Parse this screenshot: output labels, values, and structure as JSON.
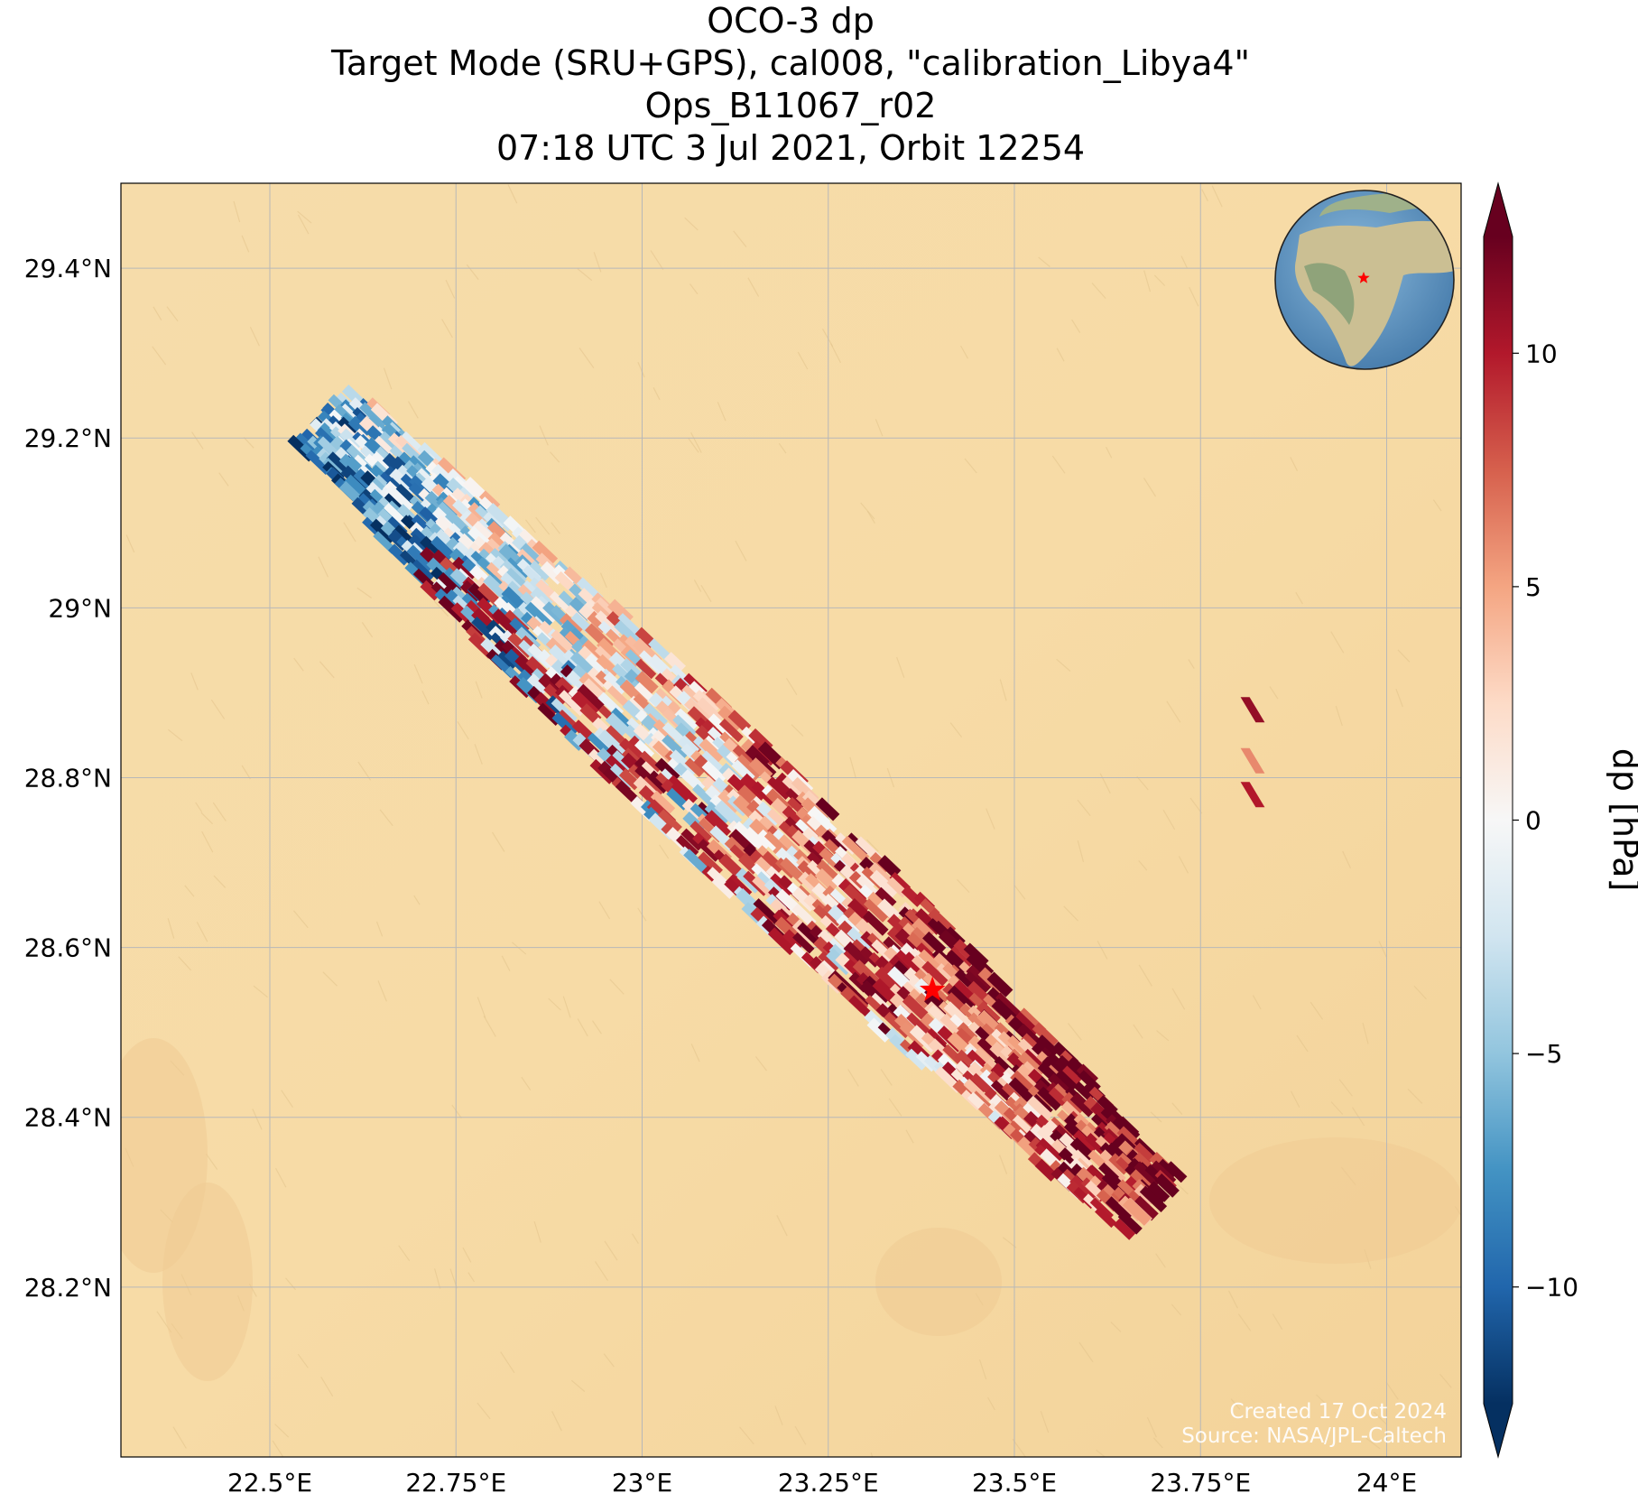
{
  "title": {
    "line1": "OCO-3 dp",
    "line2": "Target Mode (SRU+GPS), cal008, \"calibration_Libya4\"",
    "line3": "Ops_B11067_r02",
    "line4": "07:18 UTC 3 Jul 2021, Orbit 12254"
  },
  "map": {
    "lon_range": [
      22.3,
      24.1
    ],
    "lat_range": [
      28.0,
      29.5
    ],
    "lon_ticks": [
      22.5,
      22.75,
      23.0,
      23.25,
      23.5,
      23.75,
      24.0
    ],
    "lon_tick_labels": [
      "22.5°E",
      "22.75°E",
      "23°E",
      "23.25°E",
      "23.5°E",
      "23.75°E",
      "24°E"
    ],
    "lat_ticks": [
      28.2,
      28.4,
      28.6,
      28.8,
      29.0,
      29.2,
      29.4
    ],
    "lat_tick_labels": [
      "28.2°N",
      "28.4°N",
      "28.6°N",
      "28.8°N",
      "29°N",
      "29.2°N",
      "29.4°N"
    ],
    "grid": true,
    "background": "desert imagery",
    "target": {
      "lon": 23.39,
      "lat": 28.55,
      "marker": "red-star"
    }
  },
  "colorbar": {
    "label": "dp [hPa]",
    "vmin": -12.5,
    "vmax": 12.5,
    "ticks": [
      -10,
      -5,
      0,
      5,
      10
    ],
    "tick_labels": [
      "−10",
      "−5",
      "0",
      "5",
      "10"
    ],
    "colormap": "RdBu_r",
    "extend": "both"
  },
  "inset": {
    "type": "globe",
    "marker": "red-star"
  },
  "credits": {
    "line1": "Created 17 Oct 2024",
    "line2": "Source: NASA/JPL-Caltech"
  },
  "chart_data": {
    "type": "heatmap",
    "description": "OCO-3 surface pressure difference (dp) soundings along a diagonal swath over Libya4 calibration site",
    "swath_start": {
      "lon": 22.58,
      "lat": 29.22
    },
    "swath_end": {
      "lon": 23.68,
      "lat": 28.3
    },
    "dp_trend": "negative (-5 to -12 hPa) in north-west portion, mixed near 0 mid-swath, strongly positive (+8 to +12 hPa) in south-east portion",
    "isolated_soundings": [
      {
        "lon": 23.82,
        "lat": 28.88,
        "dp": 11
      },
      {
        "lon": 23.82,
        "lat": 28.82,
        "dp": 6
      },
      {
        "lon": 23.82,
        "lat": 28.78,
        "dp": 10
      }
    ]
  }
}
